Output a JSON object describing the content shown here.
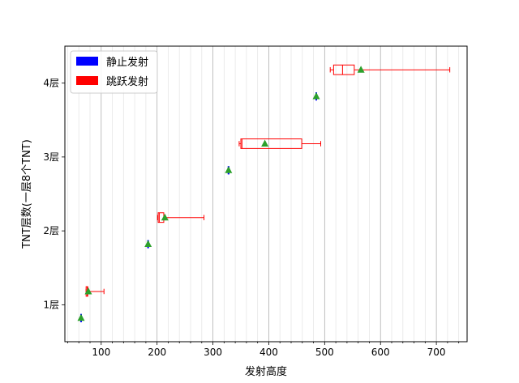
{
  "chart_data": {
    "type": "boxplot",
    "orientation": "horizontal",
    "xlabel": "发射高度",
    "ylabel": "TNT层数(一层8个TNT)",
    "xlim": [
      35,
      755
    ],
    "ylim": [
      0.5,
      4.5
    ],
    "x_major_ticks": [
      100,
      200,
      300,
      400,
      500,
      600,
      700
    ],
    "x_minor_step": 20,
    "grid": "x-axis (major and minor)",
    "categories": [
      "1层",
      "2层",
      "3层",
      "4层"
    ],
    "legend": {
      "placement": "top-left"
    },
    "series": [
      {
        "name": "静止发射",
        "color": "#0000ff",
        "mean_marker_color": "#2ca02c",
        "boxes": [
          {
            "category": "1层",
            "whisker_low": 64,
            "q1": 64,
            "median": 64,
            "q3": 64,
            "whisker_high": 64,
            "mean": 64
          },
          {
            "category": "2层",
            "whisker_low": 184,
            "q1": 184,
            "median": 184,
            "q3": 184,
            "whisker_high": 184,
            "mean": 184
          },
          {
            "category": "3层",
            "whisker_low": 328,
            "q1": 328,
            "median": 328,
            "q3": 328,
            "whisker_high": 328,
            "mean": 328
          },
          {
            "category": "4层",
            "whisker_low": 485,
            "q1": 485,
            "median": 485,
            "q3": 485,
            "whisker_high": 485,
            "mean": 485
          }
        ]
      },
      {
        "name": "跳跃发射",
        "color": "#ff0000",
        "mean_marker_color": "#2ca02c",
        "boxes": [
          {
            "category": "1层",
            "whisker_low": 73,
            "q1": 73,
            "median": 75,
            "q3": 76,
            "whisker_high": 105,
            "mean": 77
          },
          {
            "category": "2层",
            "whisker_low": 201,
            "q1": 202,
            "median": 204,
            "q3": 212,
            "whisker_high": 284,
            "mean": 214
          },
          {
            "category": "3层",
            "whisker_low": 347,
            "q1": 350,
            "median": 352,
            "q3": 459,
            "whisker_high": 493,
            "mean": 393
          },
          {
            "category": "4层",
            "whisker_low": 510,
            "q1": 516,
            "median": 532,
            "q3": 553,
            "whisker_high": 724,
            "mean": 565
          }
        ]
      }
    ]
  }
}
